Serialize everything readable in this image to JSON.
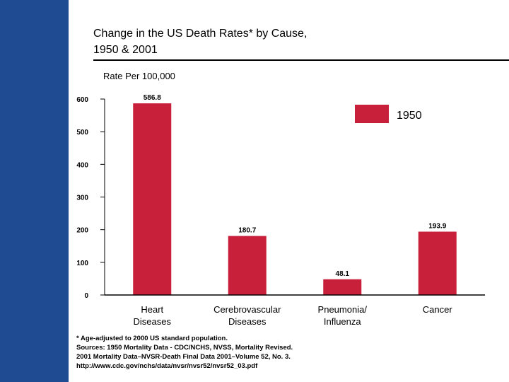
{
  "title_lines": [
    "Change in the US Death Rates* by Cause,",
    "1950 & 2001"
  ],
  "footnote_lines": [
    "* Age-adjusted to 2000 US standard population.",
    "Sources: 1950 Mortality Data - CDC/NCHS, NVSS, Mortality Revised.",
    "2001 Mortality Data–NVSR-Death Final Data 2001–Volume 52, No. 3.",
    "http://www.cdc.gov/nchs/data/nvsr/nvsr52/nvsr52_03.pdf"
  ],
  "colors": {
    "side_band": "#1f4b93",
    "bar_1950": "#c8203a",
    "axis": "#000000"
  },
  "chart_data": {
    "type": "bar",
    "title": "Change in the US Death Rates* by Cause, 1950 & 2001",
    "ylabel": "Rate Per 100,000",
    "xlabel": "",
    "ylim": [
      0,
      600
    ],
    "yticks": [
      0,
      100,
      200,
      300,
      400,
      500,
      600
    ],
    "categories": [
      [
        "Heart",
        "Diseases"
      ],
      [
        "Cerebrovascular",
        "Diseases"
      ],
      [
        "Pneumonia/",
        "Influenza"
      ],
      [
        "Cancer"
      ]
    ],
    "series": [
      {
        "name": "1950",
        "color": "#c8203a",
        "values": [
          586.8,
          180.7,
          48.1,
          193.9
        ],
        "labels": [
          "586.8",
          "180.7",
          "48.1",
          "193.9"
        ]
      }
    ],
    "legend": {
      "position": "top-right",
      "entries": [
        "1950"
      ]
    },
    "grid": false
  }
}
